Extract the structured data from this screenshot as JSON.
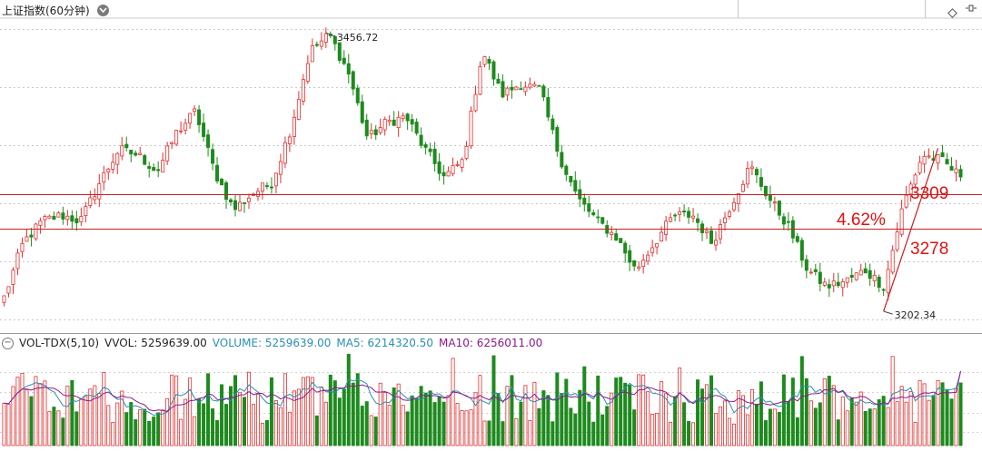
{
  "header": {
    "title": "上证指数(60分钟)",
    "right_icons": [
      "diamond-icon",
      "window-controls-icon"
    ]
  },
  "price_panel": {
    "high_label": "3456.72",
    "low_label": "3202.34",
    "level_high": "3309",
    "level_low": "3278",
    "change_label": "4.62%",
    "colors": {
      "up": "#e03030",
      "down": "#1e8a1e",
      "level_line": "#c81e1e",
      "annotation": "#e01010",
      "grid": "#c8c8c8"
    }
  },
  "volume_panel": {
    "indicator_name": "VOL-TDX(5,10)",
    "vvol_label": "VVOL: 5259639.00",
    "volume_label": "VOLUME: 5259639.00",
    "ma5_label": "MA5: 6214320.50",
    "ma10_label": "MA10: 6256011.00",
    "colors": {
      "volume_text": "#2a8fb0",
      "ma5": "#2a8fb0",
      "ma10": "#8b1a8b"
    }
  },
  "chart_data": {
    "type": "candlestick",
    "title": "上证指数(60分钟)",
    "price_range": [
      3190,
      3470
    ],
    "levels": [
      3309,
      3278
    ],
    "annotations": [
      {
        "text": "3456.72",
        "value": 3456.72
      },
      {
        "text": "3202.34",
        "value": 3202.34
      },
      {
        "text": "4.62%"
      }
    ],
    "close_keypoints": [
      3215,
      3265,
      3285,
      3290,
      3285,
      3320,
      3350,
      3345,
      3330,
      3365,
      3385,
      3330,
      3295,
      3310,
      3320,
      3370,
      3440,
      3455,
      3420,
      3360,
      3375,
      3380,
      3350,
      3325,
      3340,
      3440,
      3400,
      3410,
      3405,
      3345,
      3305,
      3285,
      3270,
      3240,
      3265,
      3290,
      3290,
      3265,
      3300,
      3335,
      3305,
      3280,
      3240,
      3225,
      3230,
      3240,
      3225,
      3300,
      3345,
      3340,
      3325
    ],
    "volume_range": [
      0,
      8000000
    ],
    "volume_last": 5259639,
    "ma5_last": 6214320.5,
    "ma10_last": 6256011,
    "grid": "dotted-horizontal"
  }
}
